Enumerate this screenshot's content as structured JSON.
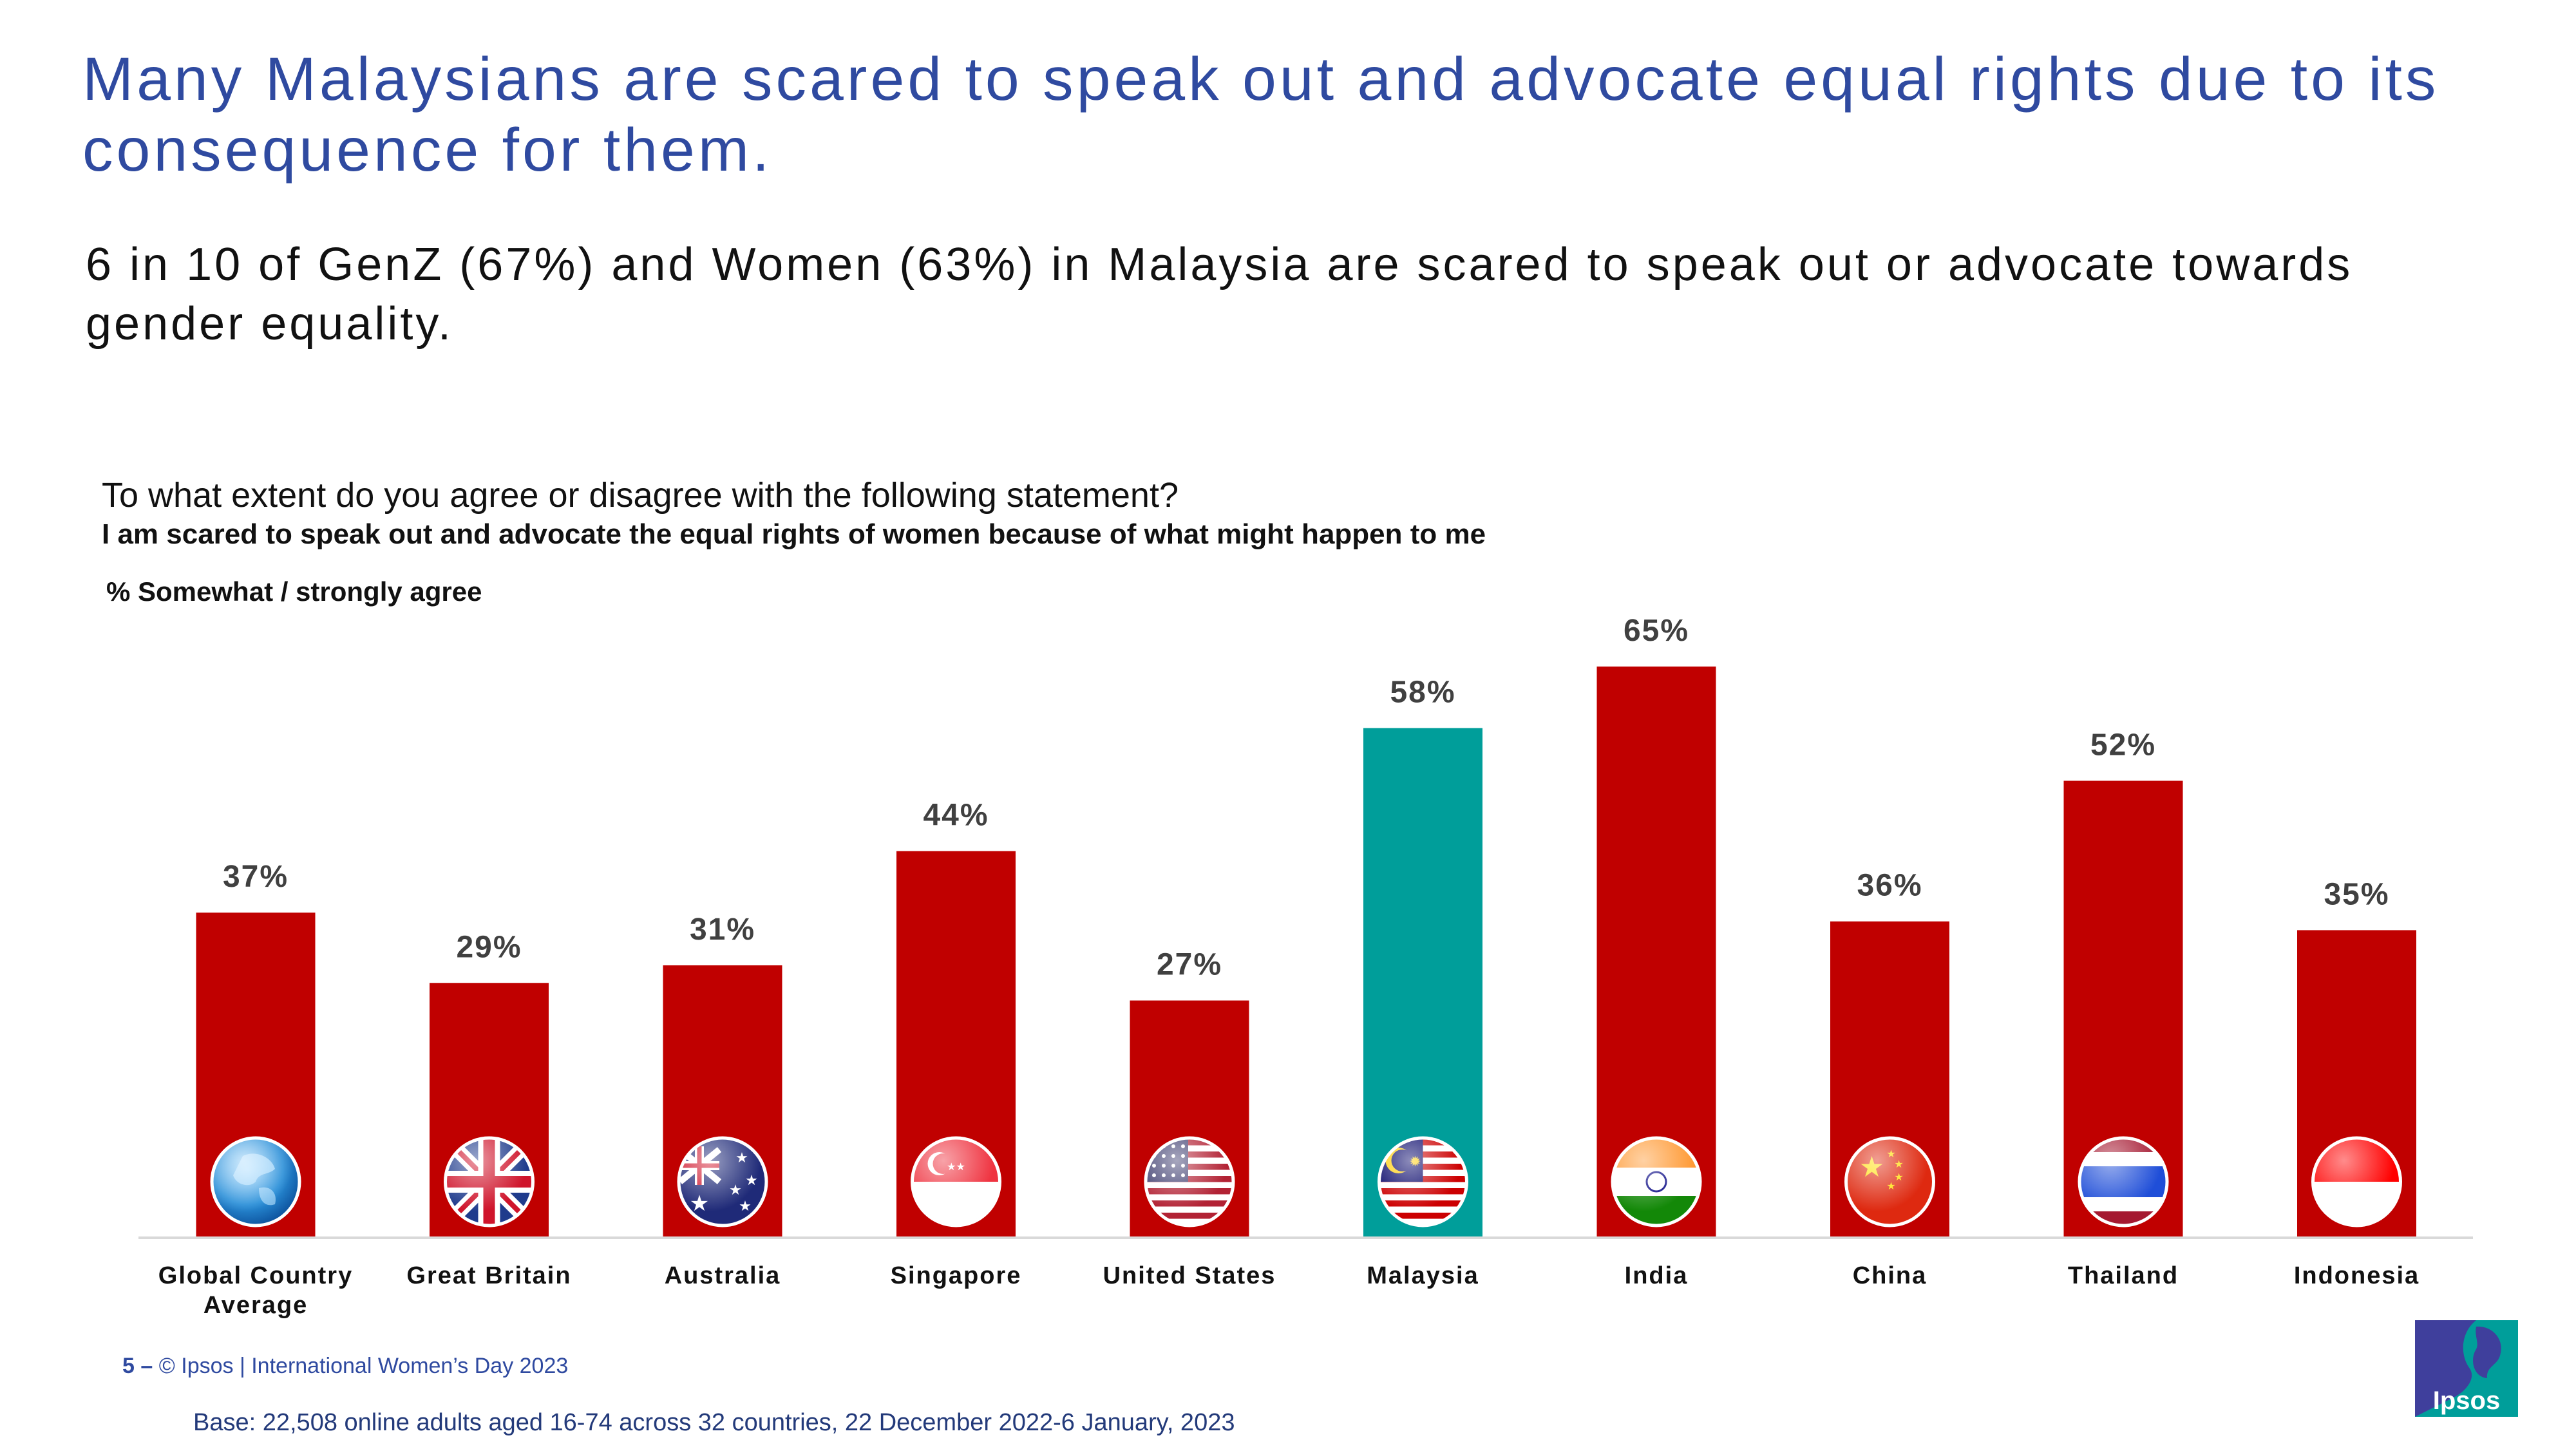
{
  "header": {
    "title": "Many Malaysians are scared to speak out and advocate equal rights due to its consequence for them.",
    "subtitle": "6 in 10 of GenZ (67%)  and Women (63%) in Malaysia are scared to speak out or advocate towards gender equality."
  },
  "survey": {
    "question": "To what extent do you agree or disagree with the following statement?",
    "statement": "I am scared to speak out and advocate the equal rights of women because of what might happen to me",
    "measure": "% Somewhat  / strongly agree"
  },
  "chart_data": {
    "type": "bar",
    "title": "I am scared to speak out and advocate the equal rights of women because of what might happen to me",
    "ylabel": "% Somewhat  / strongly agree",
    "xlabel": "",
    "ylim": [
      0,
      70
    ],
    "categories": [
      "Global Country Average",
      "Great Britain",
      "Australia",
      "Singapore",
      "United States",
      "Malaysia",
      "India",
      "China",
      "Thailand",
      "Indonesia"
    ],
    "values": [
      37,
      29,
      31,
      44,
      27,
      58,
      65,
      36,
      52,
      35
    ],
    "value_labels": [
      "37%",
      "29%",
      "31%",
      "44%",
      "27%",
      "58%",
      "65%",
      "36%",
      "52%",
      "35%"
    ],
    "highlight": "Malaysia",
    "colors": {
      "default": "#c00000",
      "highlight": "#009e9a",
      "axis": "#d9d9d9",
      "label": "#404040"
    },
    "flags": [
      "globe-icon",
      "uk-flag-icon",
      "australia-flag-icon",
      "singapore-flag-icon",
      "usa-flag-icon",
      "malaysia-flag-icon",
      "india-flag-icon",
      "china-flag-icon",
      "thailand-flag-icon",
      "indonesia-flag-icon"
    ]
  },
  "footer": {
    "page_number": "5",
    "separator": "–",
    "copyright": "© Ipsos | International Women’s Day 2023",
    "base": "Base: 22,508 online adults aged 16-74 across 32 countries, 22 December 2022-6 January, 2023"
  },
  "logo": {
    "text": "Ipsos",
    "color": "#009e9a",
    "bg": "#3f3f9c"
  }
}
